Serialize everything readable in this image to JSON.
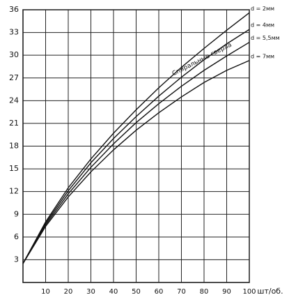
{
  "chart_data": {
    "type": "line",
    "x": [
      0,
      10,
      20,
      30,
      40,
      50,
      60,
      70,
      80,
      90,
      100
    ],
    "series": [
      {
        "name": "d = 2мм",
        "color": "#111111",
        "values": [
          2.5,
          8,
          12.5,
          16.3,
          19.7,
          22.8,
          25.7,
          28.4,
          30.9,
          33.3,
          35.6
        ]
      },
      {
        "name": "d = 4мм",
        "color": "#111111",
        "values": [
          2.5,
          7.8,
          12.1,
          15.8,
          19,
          21.9,
          24.6,
          27.1,
          29.4,
          31.5,
          33.4
        ]
      },
      {
        "name": "d = 5,5мм",
        "color": "#111111",
        "values": [
          2.5,
          7.6,
          11.7,
          15.2,
          18.3,
          21.1,
          23.6,
          25.9,
          28,
          29.9,
          31.7
        ]
      },
      {
        "name": "d = 7мм",
        "color": "#111111",
        "values": [
          2.5,
          7.4,
          11.3,
          14.6,
          17.5,
          20.1,
          22.4,
          24.5,
          26.4,
          28,
          29.3
        ]
      }
    ],
    "xlim": [
      0,
      100
    ],
    "xticks": [
      10,
      20,
      30,
      40,
      50,
      60,
      70,
      80,
      90,
      100
    ],
    "ylim": [
      0,
      36
    ],
    "yticks": [
      3,
      6,
      9,
      12,
      15,
      18,
      21,
      24,
      27,
      30,
      33,
      36
    ],
    "x_label": "шт/об.",
    "annotation": "Спиральные сверла",
    "grid": true
  }
}
